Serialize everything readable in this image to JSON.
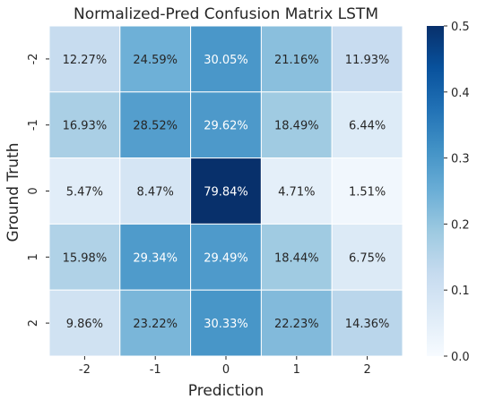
{
  "chart_data": {
    "type": "heatmap",
    "title": "Normalized-Pred Confusion Matrix LSTM",
    "xlabel": "Prediction",
    "ylabel": "Ground Truth",
    "x_categories": [
      "-2",
      "-1",
      "0",
      "1",
      "2"
    ],
    "y_categories": [
      "-2",
      "-1",
      "0",
      "1",
      "2"
    ],
    "values": [
      [
        0.1227,
        0.2459,
        0.3005,
        0.2116,
        0.1193
      ],
      [
        0.1693,
        0.2852,
        0.2962,
        0.1849,
        0.0644
      ],
      [
        0.0547,
        0.0847,
        0.7984,
        0.0471,
        0.0151
      ],
      [
        0.1598,
        0.2934,
        0.2949,
        0.1844,
        0.0675
      ],
      [
        0.0986,
        0.2322,
        0.3033,
        0.2223,
        0.1436
      ]
    ],
    "cell_labels": [
      [
        "12.27%",
        "24.59%",
        "30.05%",
        "21.16%",
        "11.93%"
      ],
      [
        "16.93%",
        "28.52%",
        "29.62%",
        "18.49%",
        "6.44%"
      ],
      [
        "5.47%",
        "8.47%",
        "79.84%",
        "4.71%",
        "1.51%"
      ],
      [
        "15.98%",
        "29.34%",
        "29.49%",
        "18.44%",
        "6.75%"
      ],
      [
        "9.86%",
        "23.22%",
        "30.33%",
        "22.23%",
        "14.36%"
      ]
    ],
    "colorbar": {
      "vmin": 0.0,
      "vmax": 0.5,
      "ticks": [
        "0.0",
        "0.1",
        "0.2",
        "0.3",
        "0.4",
        "0.5"
      ],
      "colormap": "Blues",
      "low_color": "#f7fbff",
      "high_color": "#08306b"
    },
    "grid_line_color": "#ffffff",
    "text_color_light_cells": "#262626",
    "text_color_dark_cells": "#ffffff"
  }
}
